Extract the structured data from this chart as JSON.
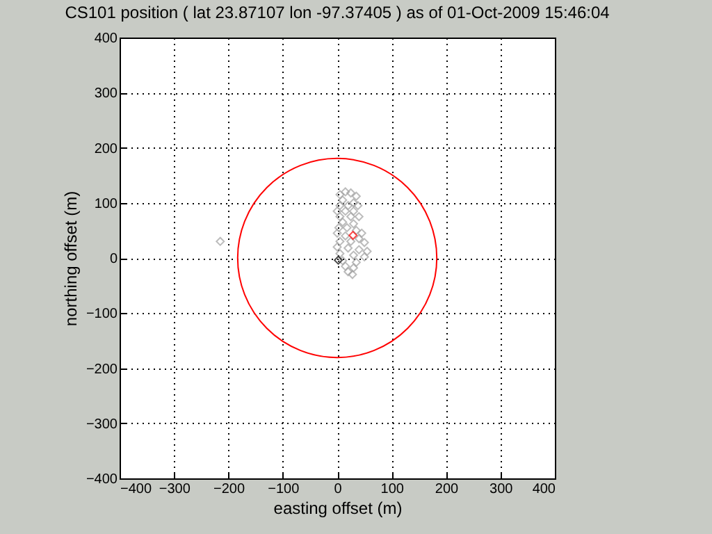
{
  "chart_data": {
    "type": "scatter",
    "title": "CS101 position ( lat  23.87107 lon -97.37405 ) as of 01-Oct-2009 15:46:04",
    "xlabel": "easting offset (m)",
    "ylabel": "northing offset (m)",
    "xlim": [
      -400,
      400
    ],
    "ylim": [
      -400,
      400
    ],
    "xticks": [
      -400,
      -300,
      -200,
      -100,
      0,
      100,
      200,
      300,
      400
    ],
    "yticks": [
      -400,
      -300,
      -200,
      -100,
      0,
      100,
      200,
      300,
      400
    ],
    "grid": true,
    "marker": "diamond",
    "series": [
      {
        "color": "#a0a0a0",
        "x": [
          5,
          15,
          25,
          35,
          10,
          30,
          5,
          20,
          38,
          0,
          15,
          30,
          5,
          25,
          40,
          10,
          30,
          3,
          18,
          35,
          45,
          0,
          15,
          40,
          5,
          25,
          50,
          0,
          20,
          40,
          55,
          5,
          30,
          50,
          10,
          35,
          15,
          30,
          20,
          28,
          -215
        ],
        "values": [
          115,
          120,
          118,
          112,
          105,
          100,
          95,
          95,
          95,
          85,
          85,
          85,
          75,
          75,
          75,
          65,
          62,
          55,
          55,
          50,
          45,
          45,
          40,
          35,
          30,
          30,
          28,
          20,
          18,
          15,
          12,
          8,
          5,
          2,
          -5,
          -8,
          -15,
          -18,
          -25,
          -30,
          30
        ]
      },
      {
        "color": "#ff0000",
        "x": [
          29
        ],
        "values": [
          41
        ]
      },
      {
        "color": "#000000",
        "x": [
          2
        ],
        "values": [
          -4
        ]
      }
    ]
  }
}
